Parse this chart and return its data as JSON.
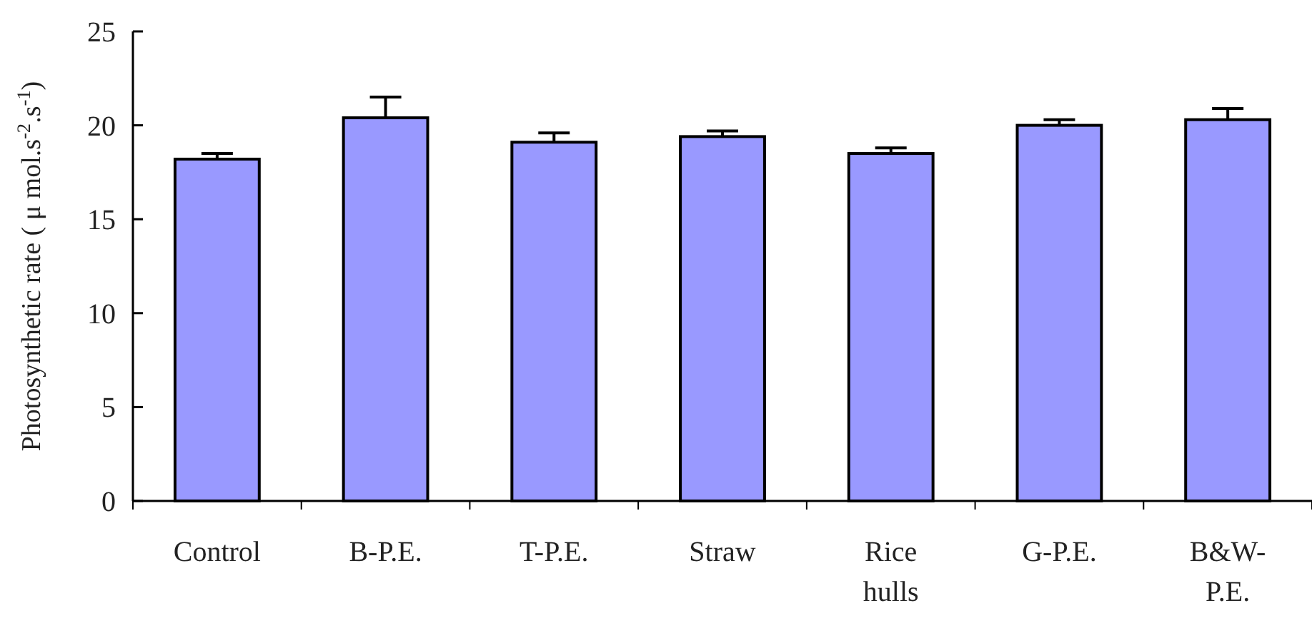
{
  "chart_data": {
    "type": "bar",
    "ylabel": "Photosynthetic rate ( μ mol.s$^{-2}$.s$^{-1}$)",
    "categories": [
      "Control",
      "B-P.E.",
      "T-P.E.",
      "Straw",
      "Rice hulls",
      "G-P.E.",
      "B&W-P.E."
    ],
    "values": [
      18.2,
      20.4,
      19.1,
      19.4,
      18.5,
      20.0,
      20.3
    ],
    "errors": [
      0.3,
      1.1,
      0.5,
      0.3,
      0.3,
      0.3,
      0.6
    ],
    "color": "#9999ff",
    "ylim": [
      0,
      25
    ],
    "yticks": [
      0,
      5,
      10,
      15,
      20,
      25
    ]
  }
}
